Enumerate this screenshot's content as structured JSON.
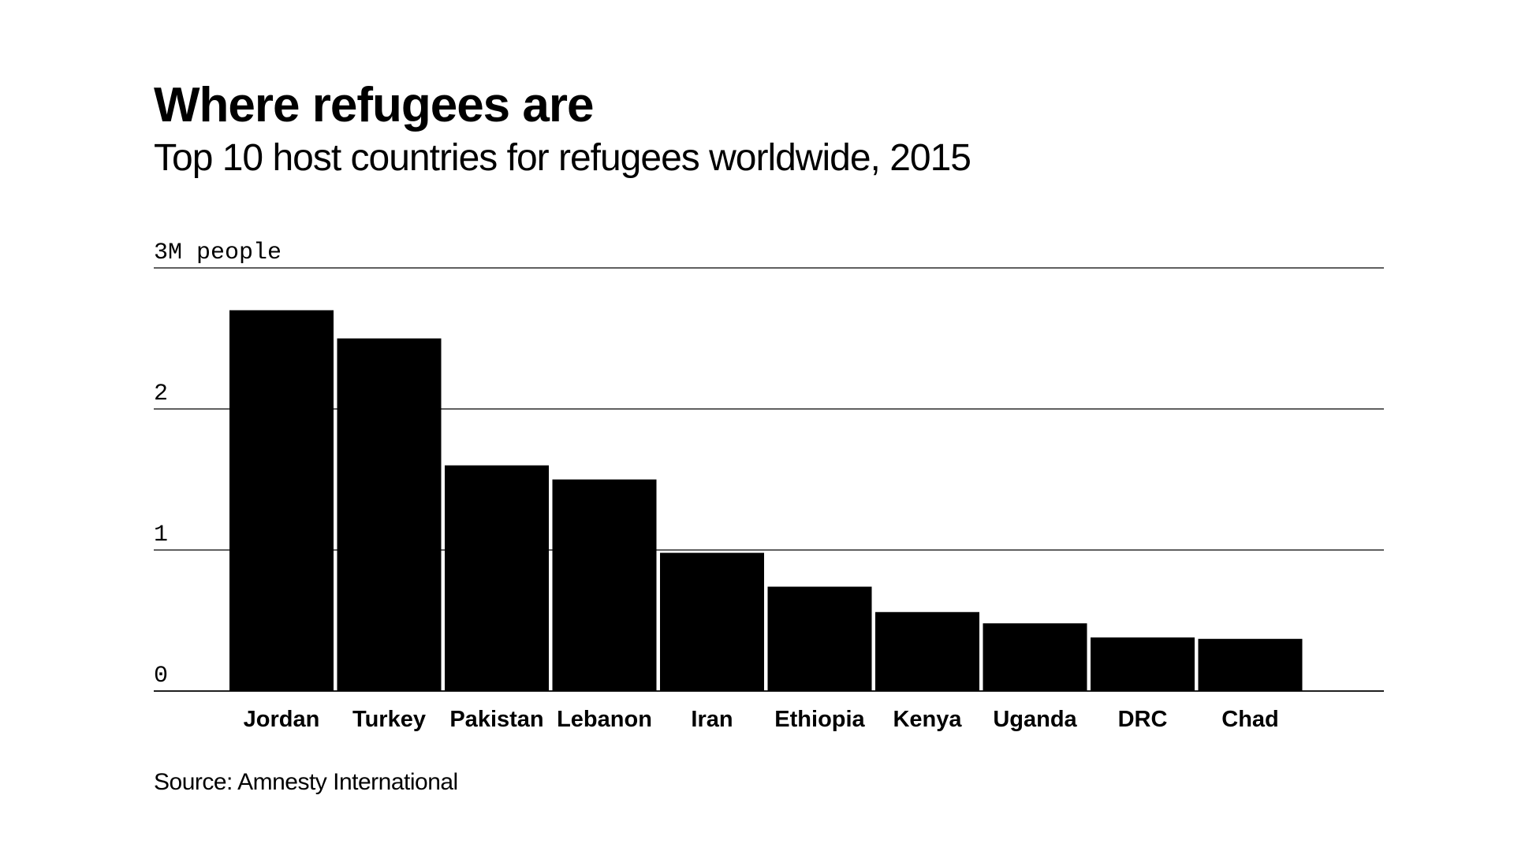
{
  "chart_data": {
    "type": "bar",
    "title": "Where refugees are",
    "subtitle": "Top 10 host countries for refugees worldwide, 2015",
    "source": "Source: Amnesty International",
    "categories": [
      "Jordan",
      "Turkey",
      "Pakistan",
      "Lebanon",
      "Iran",
      "Ethiopia",
      "Kenya",
      "Uganda",
      "DRC",
      "Chad"
    ],
    "values": [
      2.7,
      2.5,
      1.6,
      1.5,
      0.98,
      0.74,
      0.56,
      0.48,
      0.38,
      0.37
    ],
    "ylim": [
      0,
      3
    ],
    "yticks": [
      0,
      1,
      2,
      3
    ],
    "ytick_labels": [
      "0",
      "1",
      "2",
      "3M people"
    ],
    "grid": true,
    "colors": {
      "bar": "#000000",
      "grid": "#000000",
      "background": "#ffffff"
    }
  }
}
